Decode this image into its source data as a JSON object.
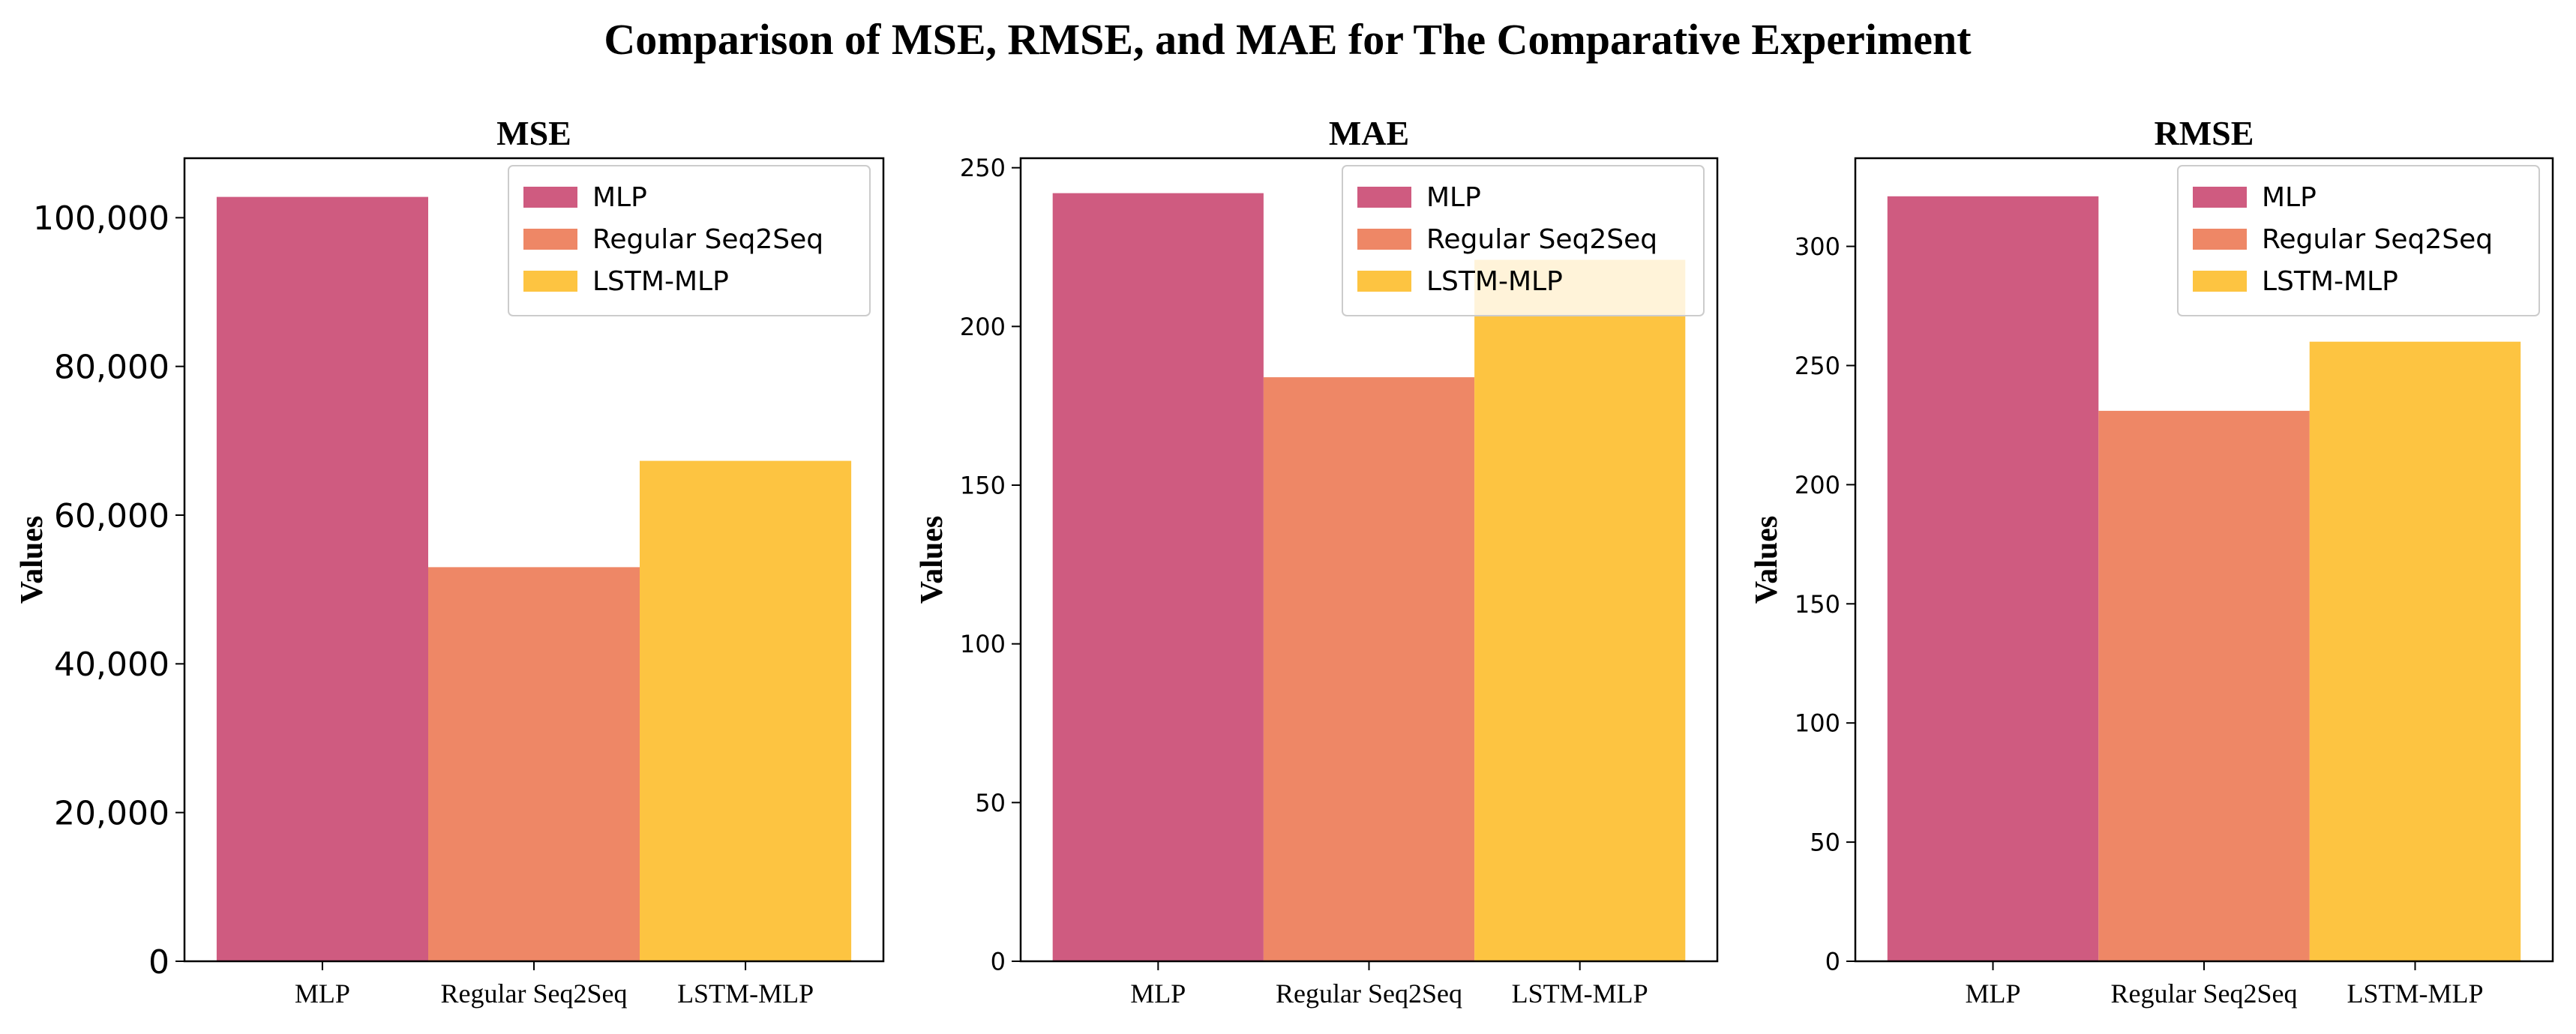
{
  "title": "Comparison of MSE, RMSE, and MAE for The Comparative Experiment",
  "colors": {
    "MLP": "#cf5b80",
    "Regular Seq2Seq": "#ee8766",
    "LSTM-MLP": "#fdc441",
    "axis": "#000000"
  },
  "chart_data": [
    {
      "type": "bar",
      "title": "MSE",
      "xlabel": "",
      "ylabel": "Values",
      "categories": [
        "MLP",
        "Regular Seq2Seq",
        "LSTM-MLP"
      ],
      "values": [
        102800,
        53000,
        67300
      ],
      "ylim": [
        0,
        108000
      ],
      "yticks": [
        0,
        20000,
        40000,
        60000,
        80000,
        100000
      ],
      "ytick_labels": [
        "0",
        "20,000",
        "40,000",
        "60,000",
        "80,000",
        "100,000"
      ],
      "legend": [
        "MLP",
        "Regular Seq2Seq",
        "LSTM-MLP"
      ],
      "legend_position": "top-right",
      "grid": false
    },
    {
      "type": "bar",
      "title": "MAE",
      "xlabel": "",
      "ylabel": "Values",
      "categories": [
        "MLP",
        "Regular Seq2Seq",
        "LSTM-MLP"
      ],
      "values": [
        242,
        184,
        221
      ],
      "ylim": [
        0,
        253
      ],
      "yticks": [
        0,
        50,
        100,
        150,
        200,
        250
      ],
      "ytick_labels": [
        "0",
        "50",
        "100",
        "150",
        "200",
        "250"
      ],
      "legend": [
        "MLP",
        "Regular Seq2Seq",
        "LSTM-MLP"
      ],
      "legend_position": "top-right",
      "grid": false
    },
    {
      "type": "bar",
      "title": "RMSE",
      "xlabel": "",
      "ylabel": "Values",
      "categories": [
        "MLP",
        "Regular Seq2Seq",
        "LSTM-MLP"
      ],
      "values": [
        321,
        231,
        260
      ],
      "ylim": [
        0,
        337
      ],
      "yticks": [
        0,
        50,
        100,
        150,
        200,
        250,
        300
      ],
      "ytick_labels": [
        "0",
        "50",
        "100",
        "150",
        "200",
        "250",
        "300"
      ],
      "legend": [
        "MLP",
        "Regular Seq2Seq",
        "LSTM-MLP"
      ],
      "legend_position": "top-right",
      "grid": false
    }
  ]
}
